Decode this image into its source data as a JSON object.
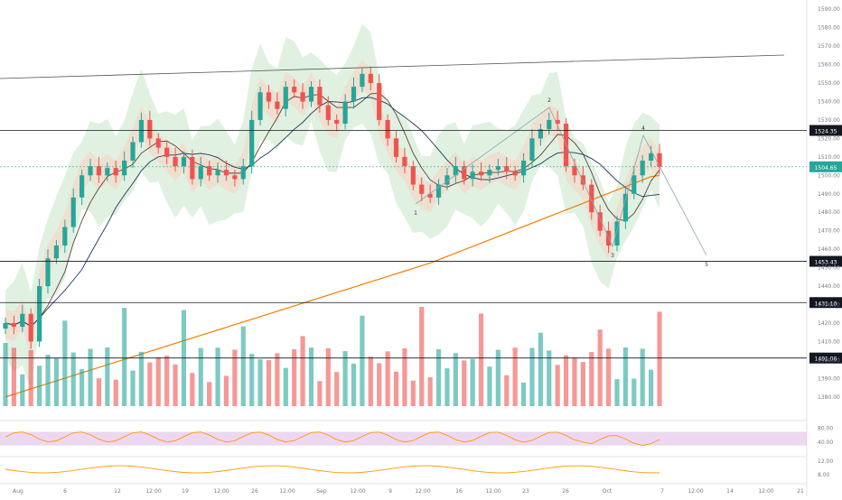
{
  "colors": {
    "up": "#26a69a",
    "down": "#ef5350",
    "ma_long": "#f57c00",
    "band_fill": "#c8e6c9",
    "rsi_fill": "#e1bee7",
    "oscillator_line": "#ff9800",
    "price_badge": "#26a69a",
    "level_badge": "#131722"
  },
  "chart_data": {
    "type": "candlestick",
    "price_axis": {
      "ticks": [
        "1590.00",
        "1580.00",
        "1570.00",
        "1560.00",
        "1550.00",
        "1540.00",
        "1530.00",
        "1520.00",
        "1510.00",
        "1500.00",
        "1490.00",
        "1480.00",
        "1470.00",
        "1460.00",
        "1450.00",
        "1440.00",
        "1430.00",
        "1420.00",
        "1410.00",
        "1400.00",
        "1390.00",
        "1380.00"
      ],
      "range": [
        1375,
        1595
      ]
    },
    "current_price": "1504.65",
    "horizontal_levels": [
      "1524.35",
      "1453.43",
      "1431.10",
      "1401.06"
    ],
    "time_axis_labels": [
      "Aug",
      "6",
      "12",
      "12:00",
      "19",
      "12:00",
      "26",
      "12:00",
      "Sep",
      "12:00",
      "9",
      "12:00",
      "16",
      "12:00",
      "23",
      "26",
      "Oct",
      "7",
      "12:00",
      "14",
      "12:00",
      "21"
    ],
    "wave_labels": [
      "1",
      "2",
      "3",
      "4",
      "5"
    ],
    "rsi": {
      "ticks": [
        "80.00",
        "40.00"
      ],
      "band": [
        30,
        70
      ]
    },
    "oscillator": {
      "ticks": [
        "12.00",
        "8.00"
      ]
    },
    "price_path": [
      1420,
      1418,
      1425,
      1410,
      1440,
      1455,
      1462,
      1472,
      1488,
      1500,
      1505,
      1500,
      1504,
      1500,
      1508,
      1518,
      1530,
      1520,
      1515,
      1510,
      1505,
      1510,
      1498,
      1505,
      1500,
      1503,
      1500,
      1498,
      1505,
      1530,
      1545,
      1540,
      1536,
      1548,
      1545,
      1540,
      1548,
      1538,
      1530,
      1528,
      1540,
      1548,
      1555,
      1550,
      1530,
      1520,
      1510,
      1505,
      1495,
      1490,
      1488,
      1495,
      1500,
      1505,
      1498,
      1502,
      1500,
      1503,
      1505,
      1502,
      1500,
      1508,
      1520,
      1525,
      1530,
      1528,
      1505,
      1500,
      1495,
      1480,
      1470,
      1462,
      1475,
      1490,
      1500,
      1508,
      1512,
      1504.65
    ]
  }
}
